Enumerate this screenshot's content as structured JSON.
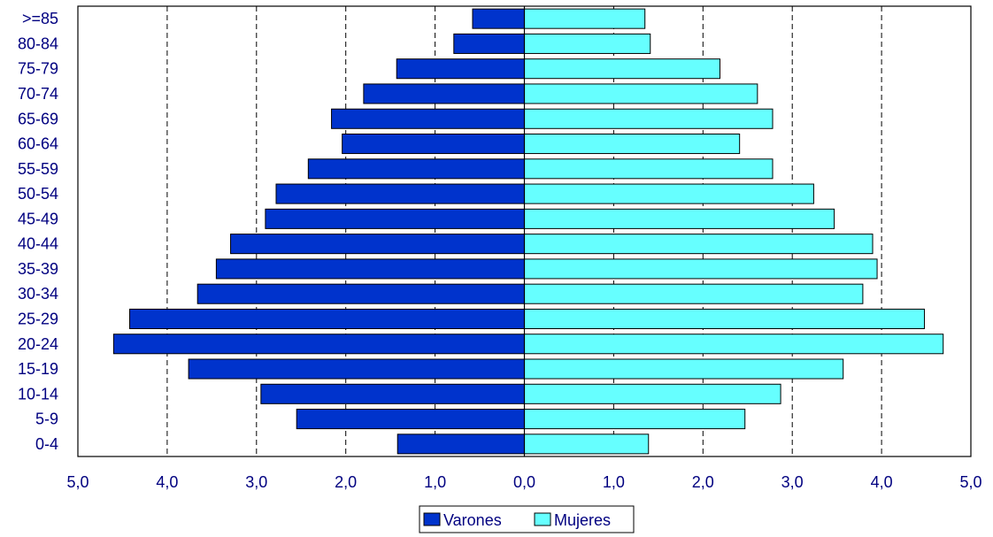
{
  "chart_data": {
    "type": "bar",
    "orientation": "horizontal",
    "layout": "population-pyramid",
    "categories": [
      "0-4",
      "5-9",
      "10-14",
      "15-19",
      "20-24",
      "25-29",
      "30-34",
      "35-39",
      "40-44",
      "45-49",
      "50-54",
      "55-59",
      "60-64",
      "65-69",
      "70-74",
      "75-79",
      "80-84",
      ">=85"
    ],
    "series": [
      {
        "name": "Varones",
        "side": "left",
        "color": "#0033CC",
        "values": [
          1.42,
          2.55,
          2.95,
          3.76,
          4.6,
          4.42,
          3.66,
          3.45,
          3.29,
          2.9,
          2.78,
          2.42,
          2.04,
          2.16,
          1.8,
          1.43,
          0.79,
          0.58
        ]
      },
      {
        "name": "Mujeres",
        "side": "right",
        "color": "#66FFFF",
        "values": [
          1.39,
          2.47,
          2.87,
          3.57,
          4.69,
          4.48,
          3.79,
          3.95,
          3.9,
          3.47,
          3.24,
          2.78,
          2.41,
          2.78,
          2.61,
          2.19,
          1.41,
          1.35
        ]
      }
    ],
    "xlim": [
      -5,
      5
    ],
    "x_tick_labels": [
      "5,0",
      "4,0",
      "3,0",
      "2,0",
      "1,0",
      "0,0",
      "1,0",
      "2,0",
      "3,0",
      "4,0",
      "5,0"
    ],
    "grid": "vertical-dashed",
    "legend": "bottom-center",
    "title": "",
    "xlabel": "",
    "ylabel": ""
  }
}
